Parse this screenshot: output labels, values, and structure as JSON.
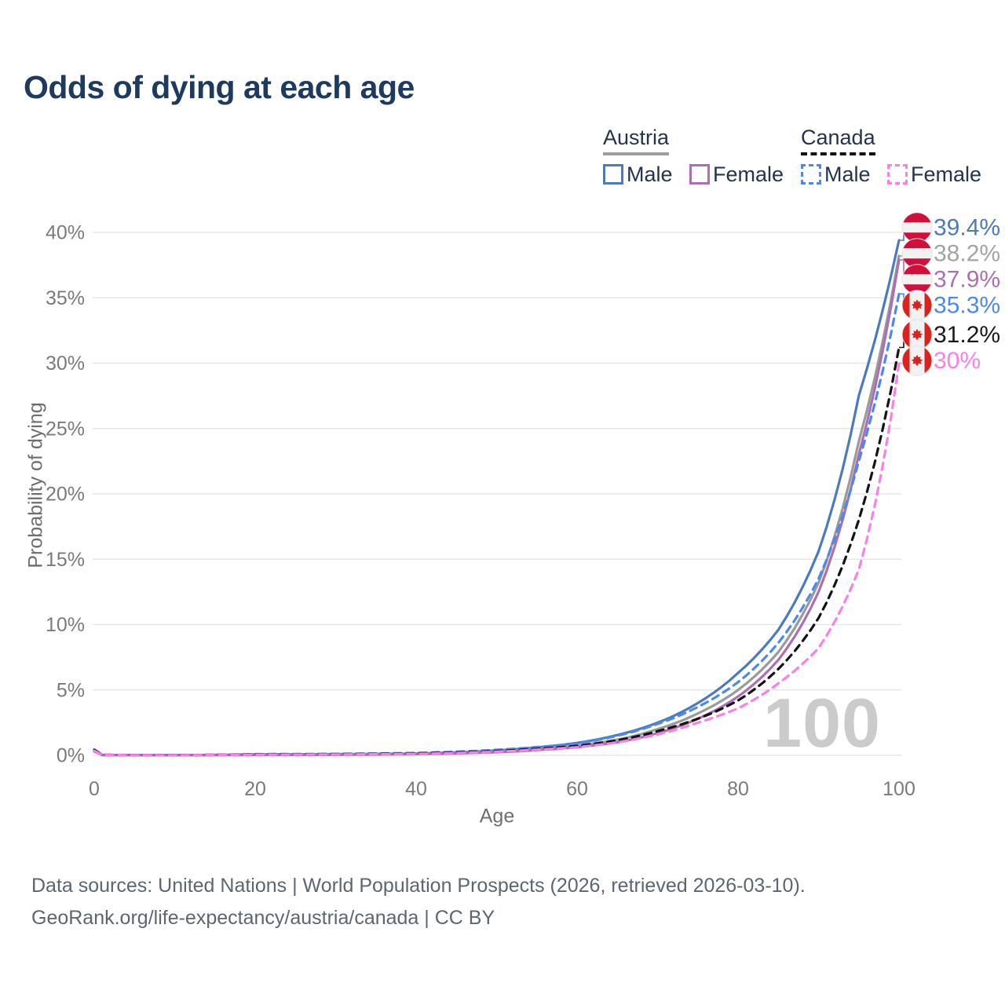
{
  "title": "Odds of dying at each age",
  "watermark": "100",
  "legend": {
    "groups": [
      {
        "name": "Austria",
        "line_style": "solid",
        "underline_color": "#9e9e9e",
        "items": [
          {
            "label": "Male",
            "color": "#4b7bbe"
          },
          {
            "label": "Female",
            "color": "#ad6fb3"
          }
        ]
      },
      {
        "name": "Canada",
        "line_style": "dashed",
        "underline_color": "#141414",
        "items": [
          {
            "label": "Male",
            "color": "#4c89ee"
          },
          {
            "label": "Female",
            "color": "#fb7fe8"
          }
        ]
      }
    ]
  },
  "footer": {
    "line1": "Data sources: United Nations | World Population Prospects (2026, retrieved 2026-03-10).",
    "line2": "GeoRank.org/life-expectancy/austria/canada | CC BY"
  },
  "colors": {
    "grid": "#e7e7e7",
    "tick_text": "#7a7a7a",
    "austria_flag_red": "#d0103a",
    "canada_flag_red": "#d8231f",
    "flag_white": "#f2f2f2",
    "flag_ring": "#e3e3e3"
  },
  "chart_data": {
    "type": "line",
    "title": "Odds of dying at each age",
    "xlabel": "Age",
    "ylabel": "Probability of dying",
    "x_ticks": [
      0,
      20,
      40,
      60,
      80,
      100
    ],
    "y_ticks_percent": [
      0,
      5,
      10,
      15,
      20,
      25,
      30,
      35,
      40
    ],
    "xlim": [
      0,
      100
    ],
    "ylim_percent": [
      0,
      40
    ],
    "grid": "horizontal",
    "legend_position": "top-right",
    "ages": [
      0,
      1,
      10,
      20,
      30,
      40,
      50,
      55,
      60,
      65,
      70,
      75,
      80,
      85,
      90,
      95,
      100
    ],
    "series": [
      {
        "name": "Austria Male",
        "country": "Austria",
        "sex": "Male",
        "color": "#4b7bbe",
        "label_color": "#4b7bbe",
        "dash": false,
        "flag": "austria",
        "end_label": "39.4%",
        "end_value_percent": 39.4,
        "values_percent": [
          0.38,
          0.03,
          0.015,
          0.08,
          0.09,
          0.14,
          0.38,
          0.6,
          0.95,
          1.55,
          2.5,
          4.0,
          6.3,
          9.6,
          15.6,
          27.5,
          39.4
        ]
      },
      {
        "name": "Austria Both sexes",
        "country": "Austria",
        "sex": "Both",
        "color": "#9a9a9a",
        "label_color": "#a3a3a3",
        "dash": false,
        "flag": "austria",
        "end_label": "38.2%",
        "end_value_percent": 38.2,
        "values_percent": [
          0.33,
          0.025,
          0.012,
          0.06,
          0.07,
          0.12,
          0.3,
          0.48,
          0.75,
          1.2,
          2.0,
          3.2,
          5.0,
          7.9,
          13.2,
          24.0,
          38.2
        ]
      },
      {
        "name": "Austria Female",
        "country": "Austria",
        "sex": "Female",
        "color": "#ad6fb3",
        "label_color": "#ad6fb3",
        "dash": false,
        "flag": "austria",
        "end_label": "37.9%",
        "end_value_percent": 37.9,
        "values_percent": [
          0.3,
          0.02,
          0.01,
          0.03,
          0.04,
          0.09,
          0.24,
          0.4,
          0.62,
          1.0,
          1.7,
          2.8,
          4.5,
          7.3,
          12.5,
          23.0,
          37.9
        ]
      },
      {
        "name": "Canada Male",
        "country": "Canada",
        "sex": "Male",
        "color": "#4c89ee",
        "label_color": "#4c89ee",
        "dash": true,
        "flag": "canada",
        "end_label": "35.3%",
        "end_value_percent": 35.3,
        "values_percent": [
          0.45,
          0.035,
          0.018,
          0.09,
          0.11,
          0.18,
          0.42,
          0.63,
          0.9,
          1.5,
          2.4,
          3.7,
          5.6,
          8.6,
          13.5,
          22.5,
          35.3
        ]
      },
      {
        "name": "Canada Both sexes",
        "country": "Canada",
        "sex": "Both",
        "color": "#141414",
        "label_color": "#1a1a1a",
        "dash": true,
        "flag": "canada",
        "end_label": "31.2%",
        "end_value_percent": 31.2,
        "values_percent": [
          0.4,
          0.03,
          0.015,
          0.07,
          0.09,
          0.14,
          0.33,
          0.5,
          0.72,
          1.15,
          1.85,
          2.8,
          4.2,
          6.6,
          10.5,
          18.0,
          31.2
        ]
      },
      {
        "name": "Canada Female",
        "country": "Canada",
        "sex": "Female",
        "color": "#fb7fe8",
        "label_color": "#fb7fe8",
        "dash": true,
        "flag": "canada",
        "end_label": "30%",
        "end_value_percent": 30.0,
        "values_percent": [
          0.35,
          0.025,
          0.012,
          0.05,
          0.07,
          0.11,
          0.28,
          0.43,
          0.62,
          1.0,
          1.6,
          2.5,
          3.6,
          5.5,
          8.2,
          14.2,
          30.0
        ]
      }
    ]
  }
}
